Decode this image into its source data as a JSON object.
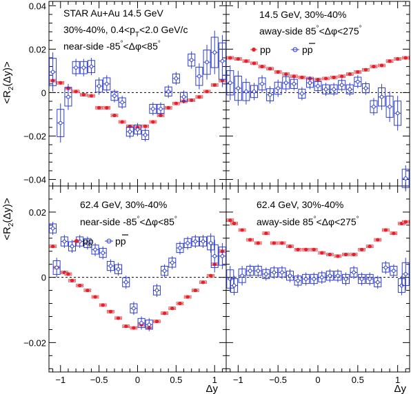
{
  "colors": {
    "pp": "#e8202a",
    "pbarp": "#2b3bd4",
    "axis": "#000000"
  },
  "chart_data": [
    {
      "id": "top-left",
      "type": "scatter",
      "collision": "14.5 GeV",
      "annotations": [
        "STAR Au+Au 14.5 GeV",
        "30%-40%, 0.4<p",
        "T",
        "<2.0 GeV/c",
        "near-side -85",
        "°",
        "<Δφ<85",
        "°"
      ],
      "ylabel": "<R",
      "ylabel_sub": "2",
      "ylabel_tail": "(Δy)>",
      "xlabel": "",
      "ylim": [
        -0.043,
        0.042
      ],
      "xlim": [
        -1.15,
        1.15
      ],
      "yticks": [
        0.04,
        0.02,
        0,
        -0.02,
        -0.04
      ],
      "ytick_labels": [
        "0.04",
        "0.02",
        "0",
        "−0.02",
        "−0.04"
      ],
      "xticks": [],
      "series": [
        {
          "key": "pp",
          "x": [
            -1.1,
            -1.0,
            -0.9,
            -0.8,
            -0.7,
            -0.6,
            -0.5,
            -0.4,
            -0.3,
            -0.2,
            -0.1,
            0.0,
            0.1,
            0.2,
            0.3,
            0.4,
            0.5,
            0.6,
            0.7,
            0.8,
            0.9,
            1.0,
            1.1
          ],
          "y": [
            0.0055,
            0.0045,
            0.002,
            0.0005,
            -0.001,
            -0.0015,
            -0.007,
            -0.007,
            -0.0105,
            -0.0135,
            -0.0155,
            -0.016,
            -0.0155,
            -0.0135,
            -0.0105,
            -0.007,
            -0.005,
            -0.004,
            -0.0035,
            -0.002,
            0.0005,
            0.0035,
            0.0055
          ]
        },
        {
          "key": "pbarp",
          "x": [
            -1.1,
            -1.0,
            -0.9,
            -0.8,
            -0.7,
            -0.6,
            -0.5,
            -0.4,
            -0.3,
            -0.2,
            -0.1,
            0.0,
            0.1,
            0.2,
            0.3,
            0.4,
            0.5,
            0.6,
            0.7,
            0.8,
            0.9,
            1.0,
            1.1
          ],
          "y": [
            0.0095,
            -0.014,
            -0.002,
            0.0115,
            0.0115,
            0.012,
            0.003,
            0.004,
            -0.0015,
            -0.0045,
            -0.018,
            -0.017,
            -0.0195,
            -0.0075,
            -0.0075,
            0.0005,
            0.0065,
            -0.002,
            0.015,
            0.0075,
            0.014,
            0.0185,
            0.0145
          ],
          "err": [
            0.009,
            0.009,
            0.006,
            0.004,
            0.004,
            0.004,
            0.004,
            0.004,
            0.003,
            0.003,
            0.003,
            0.003,
            0.003,
            0.003,
            0.003,
            0.003,
            0.003,
            0.003,
            0.004,
            0.006,
            0.008,
            0.01,
            0.012
          ]
        }
      ]
    },
    {
      "id": "top-right",
      "type": "scatter",
      "annotations": [
        "14.5 GeV, 30%-40%",
        "away-side 85",
        "°",
        "<Δφ<275",
        "°"
      ],
      "legend": [
        {
          "key": "pp",
          "label": "pp"
        },
        {
          "key": "pbarp",
          "label": "pp"
        }
      ],
      "ylim": [
        -0.043,
        0.042
      ],
      "xlim": [
        -1.15,
        1.15
      ],
      "xticks": [],
      "series": [
        {
          "key": "pp",
          "x": [
            -1.1,
            -1.0,
            -0.9,
            -0.8,
            -0.7,
            -0.6,
            -0.5,
            -0.4,
            -0.3,
            -0.2,
            -0.1,
            0.0,
            0.1,
            0.2,
            0.3,
            0.4,
            0.5,
            0.6,
            0.7,
            0.8,
            0.9,
            1.0,
            1.1
          ],
          "y": [
            0.016,
            0.0155,
            0.0145,
            0.0135,
            0.012,
            0.011,
            0.0095,
            0.0085,
            0.0075,
            0.007,
            0.0065,
            0.006,
            0.0065,
            0.007,
            0.0075,
            0.0085,
            0.0095,
            0.0105,
            0.012,
            0.0125,
            0.0145,
            0.0155,
            0.016
          ]
        },
        {
          "key": "pbarp",
          "x": [
            -1.1,
            -1.0,
            -0.9,
            -0.8,
            -0.7,
            -0.6,
            -0.5,
            -0.4,
            -0.3,
            -0.2,
            -0.1,
            0.0,
            0.1,
            0.2,
            0.3,
            0.4,
            0.5,
            0.6,
            0.7,
            0.8,
            0.9,
            1.0,
            1.1
          ],
          "y": [
            0.0045,
            0.002,
            0.0005,
            0.0005,
            0.004,
            -0.001,
            0.002,
            0.0045,
            0.004,
            -0.0005,
            0.0045,
            0.003,
            0.0015,
            0.0015,
            0.0035,
            0.0015,
            0.005,
            0.002,
            -0.0065,
            -0.002,
            -0.0065,
            -0.0095,
            -0.0395
          ],
          "err": [
            0.008,
            0.008,
            0.006,
            0.004,
            0.004,
            0.004,
            0.004,
            0.004,
            0.003,
            0.003,
            0.003,
            0.003,
            0.003,
            0.003,
            0.003,
            0.003,
            0.003,
            0.003,
            0.004,
            0.006,
            0.007,
            0.008,
            0.006
          ]
        }
      ]
    },
    {
      "id": "bottom-left",
      "type": "scatter",
      "annotations": [
        "62.4 GeV, 30%-40%",
        "near-side -85",
        "°",
        "<Δφ<85",
        "°"
      ],
      "legend": [
        {
          "key": "pp",
          "label": "pp"
        },
        {
          "key": "pbarp",
          "label": "pp"
        }
      ],
      "ylabel": "<R",
      "ylabel_sub": "2",
      "ylabel_tail": "(Δy)>",
      "xlabel": "Δy",
      "ylim": [
        -0.029,
        0.028
      ],
      "xlim": [
        -1.15,
        1.15
      ],
      "yticks": [
        0.02,
        0,
        -0.02
      ],
      "ytick_labels": [
        "0.02",
        "0",
        "−0.02"
      ],
      "xticks": [
        -1,
        -0.5,
        0,
        0.5,
        1
      ],
      "xtick_labels": [
        "−1",
        "−0.5",
        "0",
        "0.5",
        "1"
      ],
      "series": [
        {
          "key": "pp",
          "x": [
            -1.1,
            -1.05,
            -0.95,
            -0.9,
            -0.85,
            -0.75,
            -0.65,
            -0.55,
            -0.45,
            -0.35,
            -0.25,
            -0.15,
            -0.05,
            0.05,
            0.15,
            0.25,
            0.35,
            0.45,
            0.55,
            0.65,
            0.75,
            0.85,
            0.95,
            1.0,
            1.1
          ],
          "y": [
            0.0095,
            0.003,
            0.0015,
            0.001,
            -0.001,
            -0.0025,
            -0.004,
            -0.006,
            -0.0085,
            -0.0105,
            -0.0125,
            -0.015,
            -0.0155,
            -0.0145,
            -0.0155,
            -0.0135,
            -0.011,
            -0.0095,
            -0.008,
            -0.006,
            -0.004,
            -0.0015,
            0.0005,
            0.004,
            0.008
          ]
        },
        {
          "key": "pbarp",
          "x": [
            -1.1,
            -1.05,
            -0.95,
            -0.85,
            -0.75,
            -0.65,
            -0.55,
            -0.45,
            -0.35,
            -0.25,
            -0.15,
            -0.05,
            0.05,
            0.15,
            0.25,
            0.35,
            0.45,
            0.55,
            0.65,
            0.75,
            0.85,
            0.95,
            1.0,
            1.1
          ],
          "y": [
            0.015,
            0.003,
            0.011,
            0.0095,
            0.011,
            0.0105,
            0.0085,
            0.0075,
            0.0035,
            0.0025,
            -0.0015,
            -0.0095,
            -0.014,
            -0.0145,
            -0.004,
            0.002,
            0.0045,
            0.009,
            0.0105,
            0.011,
            0.011,
            0.0105,
            0.0065,
            0.0065
          ],
          "err": [
            0.002,
            0.003,
            0.002,
            0.002,
            0.002,
            0.002,
            0.002,
            0.002,
            0.002,
            0.002,
            0.002,
            0.002,
            0.002,
            0.002,
            0.002,
            0.002,
            0.002,
            0.002,
            0.002,
            0.002,
            0.002,
            0.003,
            0.005,
            0.004
          ]
        }
      ]
    },
    {
      "id": "bottom-right",
      "type": "scatter",
      "annotations": [
        "62.4 GeV, 30%-40%",
        "away-side 85",
        "°",
        "<Δφ<275",
        "°"
      ],
      "xlabel": "Δy",
      "ylim": [
        -0.029,
        0.028
      ],
      "xlim": [
        -1.15,
        1.15
      ],
      "xticks": [
        -1,
        -0.5,
        0,
        0.5,
        1
      ],
      "xtick_labels": [
        "−1",
        "−0.5",
        "0",
        "0.5",
        "1"
      ],
      "series": [
        {
          "key": "pp",
          "x": [
            -1.1,
            -1.05,
            -0.95,
            -0.85,
            -0.75,
            -0.65,
            -0.55,
            -0.45,
            -0.35,
            -0.25,
            -0.15,
            -0.05,
            0.05,
            0.15,
            0.25,
            0.35,
            0.45,
            0.55,
            0.65,
            0.75,
            0.85,
            0.95,
            1.05,
            1.1
          ],
          "y": [
            0.0175,
            0.0165,
            0.0145,
            0.0115,
            0.0105,
            0.0135,
            0.0105,
            0.0105,
            0.0095,
            0.0085,
            0.0085,
            0.0085,
            0.0075,
            0.007,
            0.0065,
            0.007,
            0.007,
            0.0085,
            0.0095,
            0.0115,
            0.0145,
            0.0135,
            0.0165,
            0.017
          ]
        },
        {
          "key": "pbarp",
          "x": [
            -1.1,
            -1.05,
            -0.95,
            -0.85,
            -0.75,
            -0.65,
            -0.55,
            -0.45,
            -0.35,
            -0.25,
            -0.15,
            -0.05,
            0.05,
            0.15,
            0.25,
            0.35,
            0.45,
            0.55,
            0.65,
            0.75,
            0.85,
            0.95,
            1.05,
            1.1
          ],
          "y": [
            -0.0005,
            -0.0025,
            0.0005,
            0.002,
            0.002,
            0.001,
            0.0015,
            0.0015,
            0.0005,
            -0.001,
            -0.0005,
            -0.0005,
            0.0,
            0.0005,
            0.0005,
            -0.0005,
            0.0015,
            -0.0005,
            -0.0005,
            -0.0015,
            0.003,
            0.002,
            -0.0025,
            0.001
          ],
          "err": [
            0.004,
            0.003,
            0.003,
            0.002,
            0.002,
            0.002,
            0.002,
            0.002,
            0.002,
            0.002,
            0.002,
            0.002,
            0.002,
            0.002,
            0.002,
            0.002,
            0.002,
            0.002,
            0.002,
            0.002,
            0.002,
            0.002,
            0.003,
            0.005
          ]
        }
      ]
    }
  ]
}
